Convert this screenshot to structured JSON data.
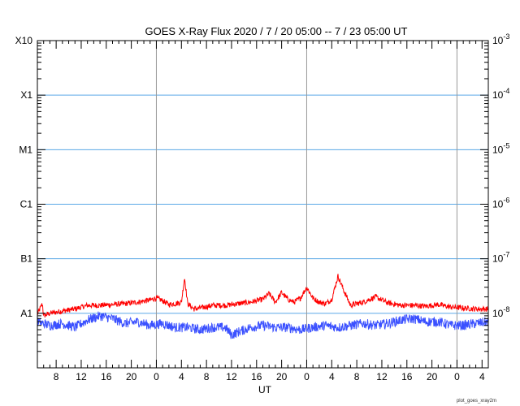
{
  "chart_data": {
    "type": "line",
    "title": "GOES X-Ray Flux   2020  /  7  /  20   05:00 --   7  /  23   05:00   UT",
    "xlabel": "UT",
    "footer": "plot_goes_xray2m",
    "y_scale": "log",
    "ylim": [
      1e-09,
      0.001
    ],
    "ylim_units": "W/m^2",
    "left_axis_labels": [
      {
        "label": "X10",
        "value": 0.001
      },
      {
        "label": "X1",
        "value": 0.0001
      },
      {
        "label": "M1",
        "value": 1e-05
      },
      {
        "label": "C1",
        "value": 1e-06
      },
      {
        "label": "B1",
        "value": 1e-07
      },
      {
        "label": "A1",
        "value": 1e-08
      }
    ],
    "right_axis_labels": [
      {
        "base": "10",
        "exp": "-3",
        "value": 0.001
      },
      {
        "base": "10",
        "exp": "-4",
        "value": 0.0001
      },
      {
        "base": "10",
        "exp": "-5",
        "value": 1e-05
      },
      {
        "base": "10",
        "exp": "-6",
        "value": 1e-06
      },
      {
        "base": "10",
        "exp": "-7",
        "value": 1e-07
      },
      {
        "base": "10",
        "exp": "-8",
        "value": 1e-08
      }
    ],
    "xlim_hours": [
      0,
      72
    ],
    "x_tick_labels": [
      "8",
      "12",
      "16",
      "20",
      "0",
      "4",
      "8",
      "12",
      "16",
      "20",
      "0",
      "4",
      "8",
      "12",
      "16",
      "20",
      "0",
      "4"
    ],
    "x_tick_hours": [
      3,
      7,
      11,
      15,
      19,
      23,
      27,
      31,
      35,
      39,
      43,
      47,
      51,
      55,
      59,
      63,
      67,
      71
    ],
    "day_boundaries_hours": [
      19,
      43,
      67
    ],
    "grid_horizontal": true,
    "series": [
      {
        "color": "#ff0000",
        "x_hours": [
          0,
          0.8,
          1,
          2,
          4,
          6,
          8,
          10,
          12,
          14,
          16,
          18,
          19,
          20,
          21,
          22,
          23,
          23.5,
          24,
          25,
          26,
          28,
          30,
          32,
          34,
          35,
          36,
          37,
          38,
          39,
          40,
          41,
          42,
          43,
          44,
          45,
          46,
          47,
          48,
          49,
          50,
          52,
          54,
          56,
          58,
          60,
          62,
          64,
          66,
          68,
          70,
          72
        ],
        "values": [
          9.5e-09,
          1.5e-08,
          9e-09,
          1e-08,
          1.1e-08,
          1.2e-08,
          1.4e-08,
          1.4e-08,
          1.45e-08,
          1.5e-08,
          1.6e-08,
          1.75e-08,
          1.9e-08,
          1.7e-08,
          1.45e-08,
          1.5e-08,
          1.6e-08,
          4.5e-08,
          1.5e-08,
          1.2e-08,
          1.25e-08,
          1.4e-08,
          1.4e-08,
          1.5e-08,
          1.6e-08,
          1.7e-08,
          1.8e-08,
          2.3e-08,
          1.6e-08,
          2.4e-08,
          1.8e-08,
          1.6e-08,
          1.9e-08,
          3e-08,
          1.9e-08,
          1.6e-08,
          1.5e-08,
          1.8e-08,
          4.8e-08,
          2.5e-08,
          1.4e-08,
          1.6e-08,
          2e-08,
          1.55e-08,
          1.4e-08,
          1.4e-08,
          1.35e-08,
          1.45e-08,
          1.3e-08,
          1.25e-08,
          1.2e-08,
          1.2e-08
        ]
      },
      {
        "color": "#3a50ff",
        "x_hours": [
          0,
          2,
          4,
          6,
          8,
          10,
          12,
          14,
          16,
          18,
          20,
          22,
          24,
          26,
          28,
          30,
          31,
          32,
          34,
          36,
          38,
          40,
          42,
          44,
          46,
          48,
          50,
          52,
          54,
          56,
          58,
          60,
          62,
          64,
          66,
          68,
          70,
          72
        ],
        "values": [
          7e-09,
          6e-09,
          6.5e-09,
          5.5e-09,
          7.5e-09,
          9e-09,
          8e-09,
          6.5e-09,
          7e-09,
          6e-09,
          6.5e-09,
          5.5e-09,
          5.5e-09,
          5e-09,
          5.5e-09,
          5.5e-09,
          4e-09,
          4.5e-09,
          5.5e-09,
          6e-09,
          5.5e-09,
          5.5e-09,
          5e-09,
          5.5e-09,
          6e-09,
          5.5e-09,
          6e-09,
          6.5e-09,
          6e-09,
          6.5e-09,
          7.5e-09,
          8e-09,
          7e-09,
          7e-09,
          6e-09,
          6e-09,
          6.5e-09,
          7e-09
        ]
      }
    ]
  },
  "colors": {
    "grid_horizontal": "#5aa8e6",
    "grid_vertical": "#999999",
    "axis": "#000000"
  }
}
